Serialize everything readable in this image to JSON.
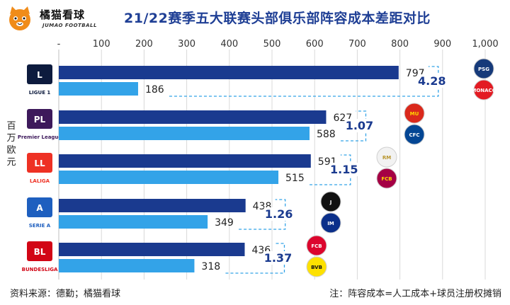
{
  "brand": {
    "name": "橘猫看球",
    "subtitle": "JUMAO FOOTBALL"
  },
  "title": "21/22赛季五大联赛头部俱乐部阵容成本差距对比",
  "y_unit_label": "百万欧元",
  "footer": {
    "source": "资料来源：德勤；橘猫看球",
    "note": "注：阵容成本=人工成本+球员注册权摊销"
  },
  "colors": {
    "top": "#1a3a8f",
    "second": "#33a3e8",
    "ratio": "#1a3a8f",
    "connector": "#33a3e8",
    "grid": "#d9d9d9"
  },
  "chart_data": {
    "type": "bar",
    "orientation": "horizontal",
    "title": "21/22赛季五大联赛头部俱乐部阵容成本差距对比",
    "xlabel": "",
    "ylabel": "百万欧元",
    "xlim": [
      0,
      1000
    ],
    "xticks": [
      "-",
      "100",
      "200",
      "300",
      "400",
      "500",
      "600",
      "700",
      "800",
      "900",
      "1,000"
    ],
    "grid": true,
    "groups": [
      {
        "league": "Ligue 1",
        "league_label": "LIGUE 1",
        "clubs": [
          "Paris Saint-Germain",
          "AS Monaco"
        ],
        "values": [
          797,
          186
        ],
        "labels": [
          "797",
          "186"
        ],
        "ratio": "4.28"
      },
      {
        "league": "Premier League",
        "league_label": "Premier League",
        "clubs": [
          "Manchester United",
          "Chelsea"
        ],
        "values": [
          627,
          588
        ],
        "labels": [
          "627",
          "588"
        ],
        "ratio": "1.07"
      },
      {
        "league": "LaLiga",
        "league_label": "LALIGA",
        "clubs": [
          "Real Madrid",
          "Barcelona"
        ],
        "values": [
          591,
          515
        ],
        "labels": [
          "591",
          "515"
        ],
        "ratio": "1.15"
      },
      {
        "league": "Serie A",
        "league_label": "SERIE A",
        "clubs": [
          "Juventus",
          "Inter"
        ],
        "values": [
          438,
          349
        ],
        "labels": [
          "438",
          "349"
        ],
        "ratio": "1.26"
      },
      {
        "league": "Bundesliga",
        "league_label": "BUNDESLIGA",
        "clubs": [
          "Bayern Munich",
          "Borussia Dortmund"
        ],
        "values": [
          436,
          318
        ],
        "labels": [
          "436",
          "318"
        ],
        "ratio": "1.37"
      }
    ]
  },
  "badges": {
    "psg": "PSG",
    "monaco": "MONACO",
    "manutd": "MU",
    "chelsea": "CFC",
    "real": "RM",
    "barca": "FCB",
    "juve": "J",
    "inter": "IM",
    "bayern": "FCB",
    "bvb": "BVB",
    "ligue1": "L",
    "pl": "PL",
    "laliga": "LL",
    "seriea": "A",
    "bundesliga": "BL"
  }
}
